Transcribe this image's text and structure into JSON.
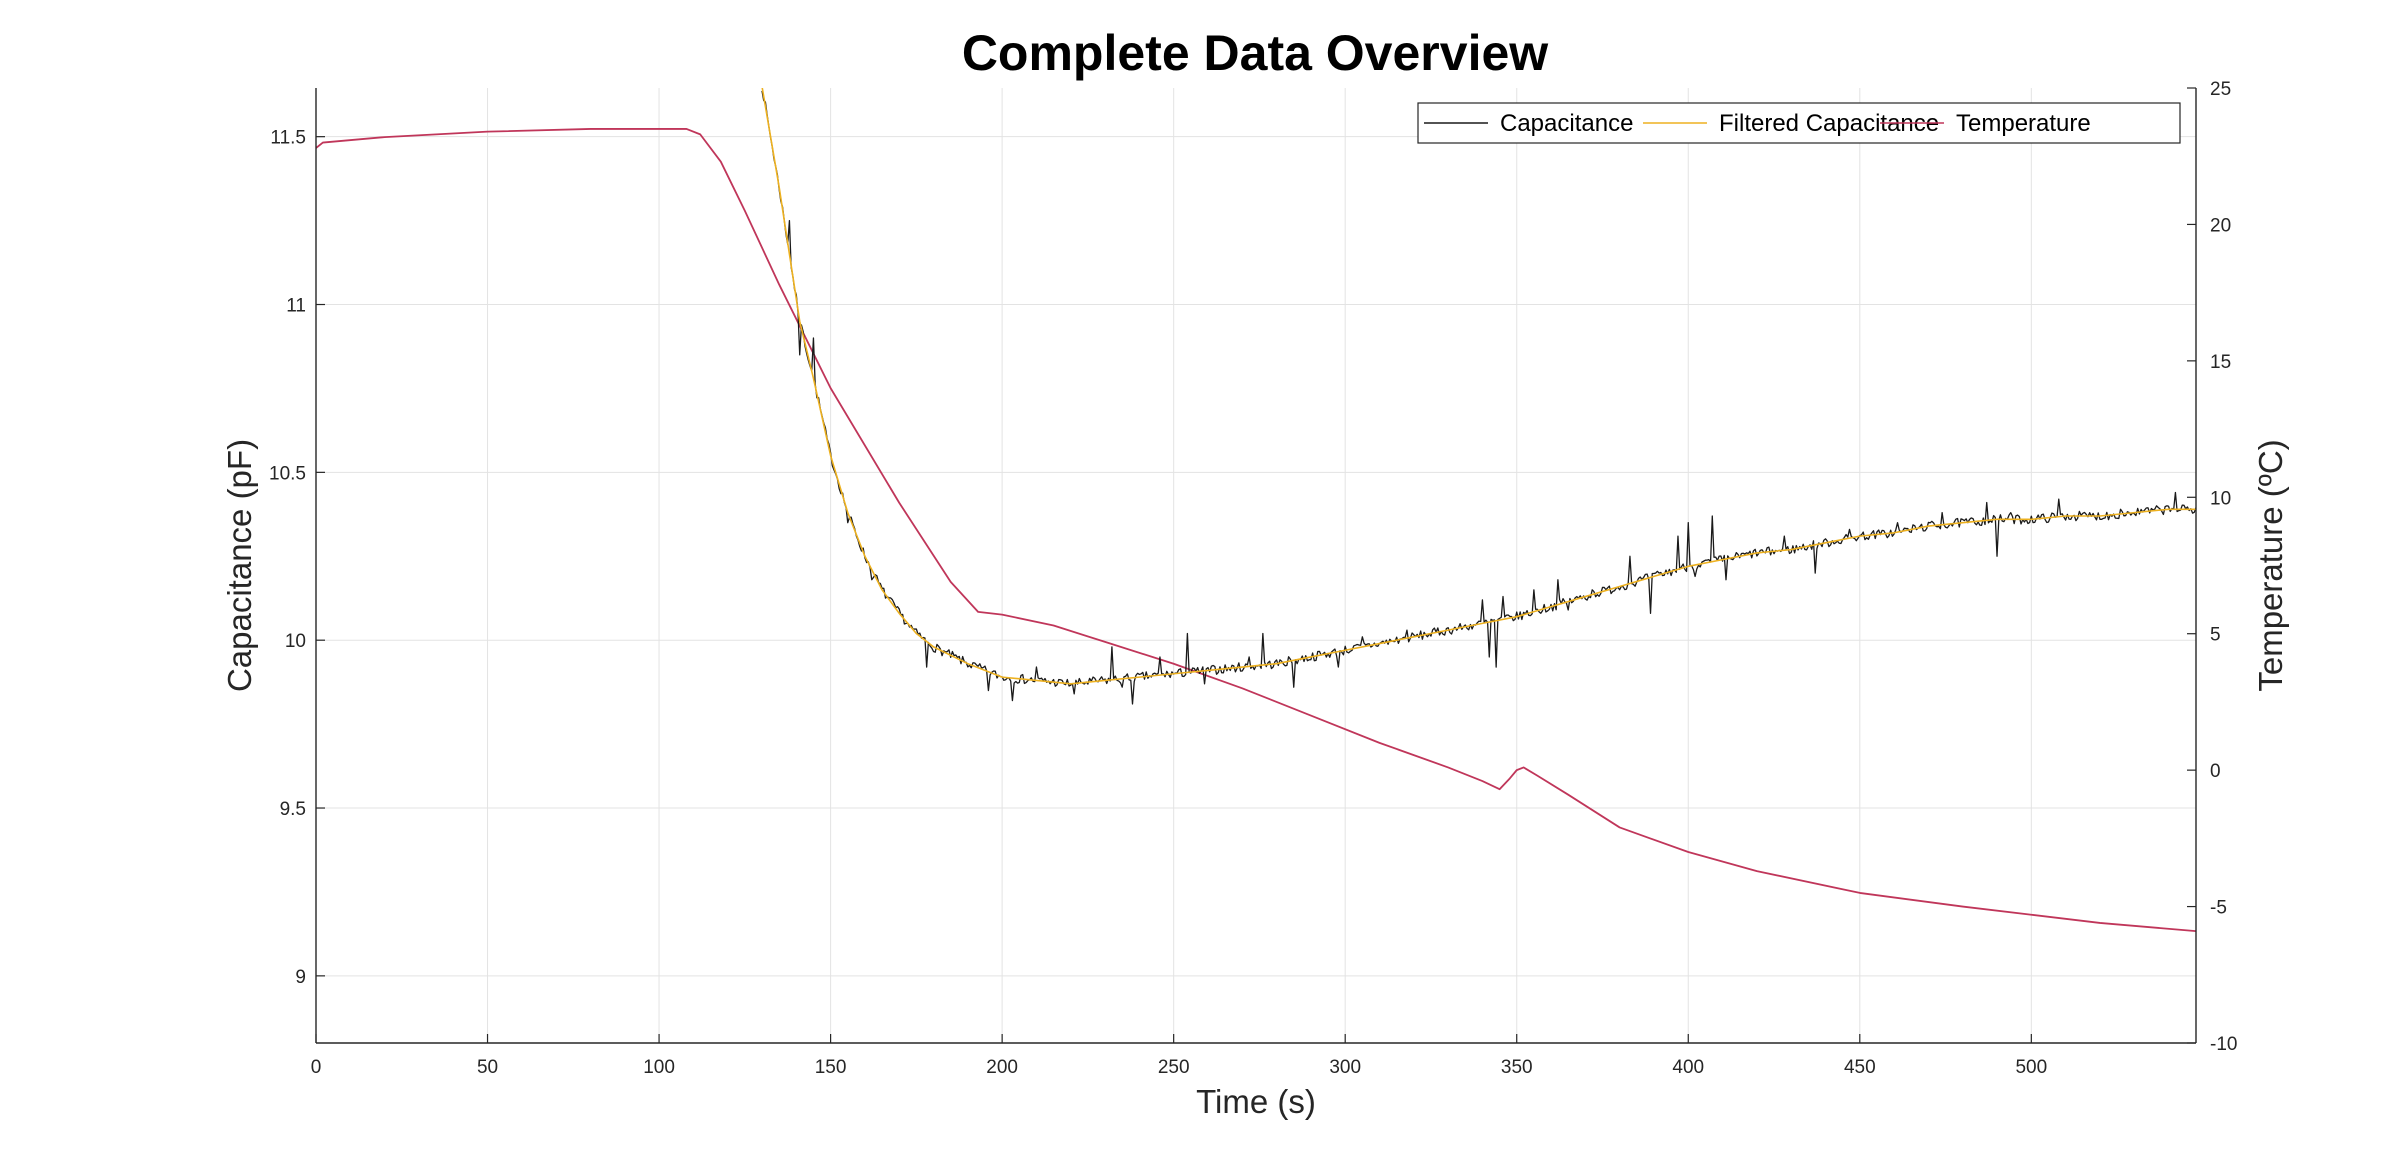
{
  "chart_data": {
    "type": "line",
    "title": "Complete Data Overview",
    "xlabel": "Time (s)",
    "ylabel_left": "Capacitance (pF)",
    "ylabel_right": "Temperature (ºC)",
    "xlim": [
      0,
      548
    ],
    "ylim_left": [
      8.8,
      11.645
    ],
    "ylim_right": [
      -10,
      25
    ],
    "x_ticks": [
      0,
      50,
      100,
      150,
      200,
      250,
      300,
      350,
      400,
      450,
      500
    ],
    "y_ticks_left": [
      9,
      9.5,
      10,
      10.5,
      11,
      11.5
    ],
    "y_ticks_right": [
      -10,
      -5,
      0,
      5,
      10,
      15,
      20,
      25
    ],
    "grid": true,
    "legend_position": "top-right",
    "series": [
      {
        "name": "Capacitance",
        "axis": "left",
        "color": "#1a1a1a",
        "points": [
          [
            130,
            11.65
          ],
          [
            135,
            11.35
          ],
          [
            138,
            11.15
          ],
          [
            141,
            10.95
          ],
          [
            145,
            10.78
          ],
          [
            150,
            10.55
          ],
          [
            155,
            10.38
          ],
          [
            160,
            10.25
          ],
          [
            165,
            10.15
          ],
          [
            170,
            10.08
          ],
          [
            175,
            10.02
          ],
          [
            180,
            9.98
          ],
          [
            190,
            9.93
          ],
          [
            200,
            9.89
          ],
          [
            210,
            9.88
          ],
          [
            220,
            9.87
          ],
          [
            230,
            9.88
          ],
          [
            240,
            9.89
          ],
          [
            250,
            9.9
          ],
          [
            260,
            9.91
          ],
          [
            270,
            9.92
          ],
          [
            280,
            9.93
          ],
          [
            290,
            9.95
          ],
          [
            300,
            9.97
          ],
          [
            310,
            9.99
          ],
          [
            320,
            10.01
          ],
          [
            330,
            10.03
          ],
          [
            340,
            10.05
          ],
          [
            350,
            10.07
          ],
          [
            360,
            10.1
          ],
          [
            370,
            10.13
          ],
          [
            380,
            10.16
          ],
          [
            390,
            10.19
          ],
          [
            400,
            10.22
          ],
          [
            410,
            10.24
          ],
          [
            420,
            10.26
          ],
          [
            430,
            10.27
          ],
          [
            440,
            10.29
          ],
          [
            450,
            10.31
          ],
          [
            460,
            10.32
          ],
          [
            470,
            10.34
          ],
          [
            480,
            10.35
          ],
          [
            490,
            10.36
          ],
          [
            500,
            10.36
          ],
          [
            510,
            10.37
          ],
          [
            520,
            10.37
          ],
          [
            530,
            10.38
          ],
          [
            540,
            10.39
          ],
          [
            548,
            10.39
          ]
        ],
        "spikes": [
          [
            138,
            11.25
          ],
          [
            141,
            10.85
          ],
          [
            142,
            10.92
          ],
          [
            145,
            10.9
          ],
          [
            155,
            10.35
          ],
          [
            162,
            10.18
          ],
          [
            172,
            10.05
          ],
          [
            178,
            9.92
          ],
          [
            196,
            9.85
          ],
          [
            203,
            9.82
          ],
          [
            210,
            9.92
          ],
          [
            221,
            9.84
          ],
          [
            232,
            9.98
          ],
          [
            235,
            9.86
          ],
          [
            238,
            9.81
          ],
          [
            246,
            9.95
          ],
          [
            254,
            10.02
          ],
          [
            259,
            9.87
          ],
          [
            272,
            9.95
          ],
          [
            276,
            10.02
          ],
          [
            285,
            9.86
          ],
          [
            298,
            9.92
          ],
          [
            305,
            10.01
          ],
          [
            318,
            10.03
          ],
          [
            340,
            10.12
          ],
          [
            342,
            9.95
          ],
          [
            344,
            9.92
          ],
          [
            346,
            10.13
          ],
          [
            355,
            10.15
          ],
          [
            362,
            10.18
          ],
          [
            365,
            10.09
          ],
          [
            372,
            10.15
          ],
          [
            383,
            10.25
          ],
          [
            389,
            10.08
          ],
          [
            397,
            10.31
          ],
          [
            400,
            10.35
          ],
          [
            402,
            10.19
          ],
          [
            407,
            10.37
          ],
          [
            411,
            10.18
          ],
          [
            428,
            10.31
          ],
          [
            437,
            10.2
          ],
          [
            447,
            10.33
          ],
          [
            461,
            10.35
          ],
          [
            474,
            10.38
          ],
          [
            487,
            10.41
          ],
          [
            490,
            10.25
          ],
          [
            494,
            10.38
          ],
          [
            508,
            10.42
          ],
          [
            526,
            10.39
          ],
          [
            542,
            10.44
          ]
        ]
      },
      {
        "name": "Filtered Capacitance",
        "axis": "left",
        "color": "#edb120",
        "points": [
          [
            130,
            11.65
          ],
          [
            135,
            11.35
          ],
          [
            138,
            11.15
          ],
          [
            141,
            10.95
          ],
          [
            145,
            10.78
          ],
          [
            150,
            10.55
          ],
          [
            155,
            10.38
          ],
          [
            160,
            10.25
          ],
          [
            165,
            10.15
          ],
          [
            170,
            10.08
          ],
          [
            175,
            10.02
          ],
          [
            180,
            9.98
          ],
          [
            190,
            9.93
          ],
          [
            200,
            9.89
          ],
          [
            210,
            9.88
          ],
          [
            220,
            9.87
          ],
          [
            230,
            9.88
          ],
          [
            240,
            9.89
          ],
          [
            250,
            9.9
          ],
          [
            260,
            9.91
          ],
          [
            270,
            9.92
          ],
          [
            280,
            9.93
          ],
          [
            290,
            9.95
          ],
          [
            300,
            9.97
          ],
          [
            310,
            9.99
          ],
          [
            320,
            10.01
          ],
          [
            330,
            10.03
          ],
          [
            340,
            10.05
          ],
          [
            350,
            10.07
          ],
          [
            360,
            10.1
          ],
          [
            370,
            10.13
          ],
          [
            380,
            10.16
          ],
          [
            390,
            10.19
          ],
          [
            400,
            10.22
          ],
          [
            410,
            10.24
          ],
          [
            420,
            10.26
          ],
          [
            430,
            10.27
          ],
          [
            440,
            10.29
          ],
          [
            450,
            10.31
          ],
          [
            460,
            10.32
          ],
          [
            470,
            10.34
          ],
          [
            480,
            10.35
          ],
          [
            490,
            10.36
          ],
          [
            500,
            10.36
          ],
          [
            510,
            10.37
          ],
          [
            520,
            10.37
          ],
          [
            530,
            10.38
          ],
          [
            540,
            10.39
          ],
          [
            548,
            10.39
          ]
        ]
      },
      {
        "name": "Temperature",
        "axis": "right",
        "color": "#c0365a",
        "points": [
          [
            0,
            22.8
          ],
          [
            2,
            23.0
          ],
          [
            20,
            23.2
          ],
          [
            50,
            23.4
          ],
          [
            80,
            23.5
          ],
          [
            108,
            23.5
          ],
          [
            112,
            23.3
          ],
          [
            118,
            22.3
          ],
          [
            125,
            20.5
          ],
          [
            135,
            17.8
          ],
          [
            150,
            14.0
          ],
          [
            170,
            9.8
          ],
          [
            185,
            6.9
          ],
          [
            193,
            5.8
          ],
          [
            200,
            5.7
          ],
          [
            215,
            5.3
          ],
          [
            230,
            4.7
          ],
          [
            250,
            3.9
          ],
          [
            270,
            3.0
          ],
          [
            290,
            2.0
          ],
          [
            310,
            1.0
          ],
          [
            330,
            0.1
          ],
          [
            340,
            -0.4
          ],
          [
            345,
            -0.7
          ],
          [
            348,
            -0.3
          ],
          [
            350,
            0.0
          ],
          [
            352,
            0.1
          ],
          [
            356,
            -0.2
          ],
          [
            365,
            -0.9
          ],
          [
            380,
            -2.1
          ],
          [
            400,
            -3.0
          ],
          [
            420,
            -3.7
          ],
          [
            450,
            -4.5
          ],
          [
            480,
            -5.0
          ],
          [
            500,
            -5.3
          ],
          [
            520,
            -5.6
          ],
          [
            548,
            -5.9
          ]
        ]
      }
    ]
  }
}
